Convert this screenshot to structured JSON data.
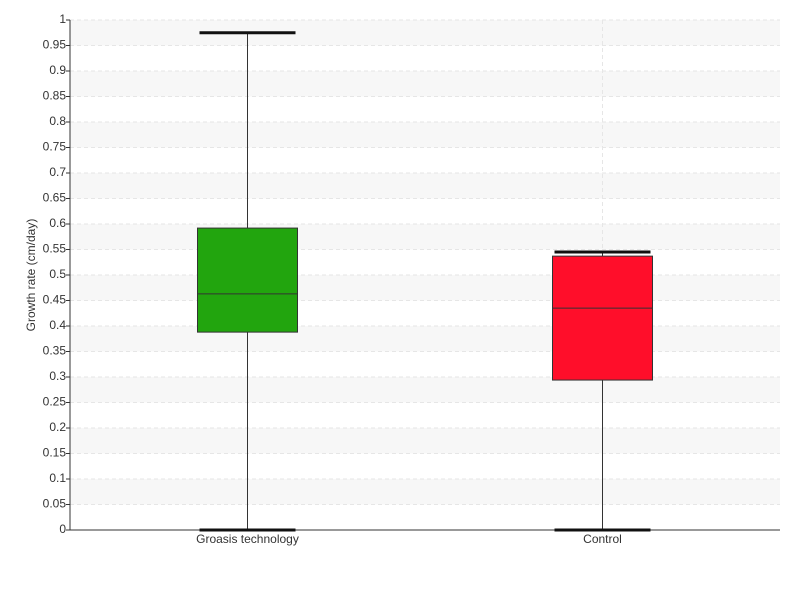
{
  "chart_data": {
    "type": "box",
    "y_label": "Growth rate (cm/day)",
    "categories": [
      "Groasis technology",
      "Control"
    ],
    "boxes": [
      {
        "min": 0,
        "q1": 0.388,
        "median": 0.463,
        "q3": 0.592,
        "max": 0.975,
        "color": "#22a50e"
      },
      {
        "min": 0,
        "q1": 0.294,
        "median": 0.435,
        "q3": 0.537,
        "max": 0.545,
        "color": "#ff0e2a"
      }
    ],
    "ylim": [
      0,
      1
    ],
    "yticks": [
      0,
      0.05,
      0.1,
      0.15,
      0.2,
      0.25,
      0.3,
      0.35,
      0.4,
      0.45,
      0.5,
      0.55,
      0.6,
      0.65,
      0.7,
      0.75,
      0.8,
      0.85,
      0.9,
      0.95,
      1
    ],
    "grid": true
  }
}
